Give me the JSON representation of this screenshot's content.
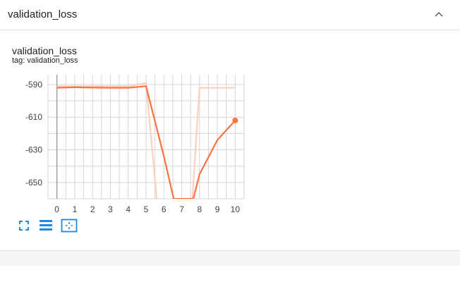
{
  "header": {
    "title": "validation_loss"
  },
  "icons": {
    "collapse": "chevron-up-icon",
    "fullscreen": "fullscreen-icon",
    "log_scale": "lines-icon",
    "fit_domain": "fit-to-data-icon"
  },
  "chart": {
    "title": "validation_loss",
    "tag": "tag: validation_loss"
  },
  "colors": {
    "series": "#ff7043",
    "series_faded": "#ffccbc",
    "grid": "#d6d6d6",
    "axis": "#9e9e9e",
    "toolbar_icon": "#1e88e5"
  },
  "chart_data": {
    "type": "line",
    "xlim": [
      -0.5,
      10.5
    ],
    "ylim": [
      -660,
      -584
    ],
    "x_ticks": [
      "0",
      "1",
      "2",
      "3",
      "4",
      "5",
      "6",
      "7",
      "8",
      "9",
      "10"
    ],
    "y_ticks": [
      "-590",
      "-610",
      "-630",
      "-650"
    ],
    "x_tick_values": [
      0,
      1,
      2,
      3,
      4,
      5,
      6,
      7,
      8,
      9,
      10
    ],
    "y_tick_values": [
      -590,
      -610,
      -630,
      -650
    ],
    "grid": true,
    "series": [
      {
        "style": "raw",
        "x": [
          0,
          1,
          2,
          3,
          4,
          5,
          5.6
        ],
        "y": [
          -591,
          -591,
          -591,
          -591,
          -591,
          -589,
          -660
        ]
      },
      {
        "style": "raw",
        "x": [
          7.6,
          8,
          9,
          10
        ],
        "y": [
          -660,
          -592,
          -592,
          -592
        ]
      },
      {
        "style": "smoothed",
        "x": [
          0,
          1,
          2,
          3,
          4,
          5,
          6,
          6.55,
          7.65,
          8,
          9,
          10
        ],
        "y": [
          -592,
          -591.7,
          -591.9,
          -592,
          -592,
          -591,
          -634,
          -660,
          -660,
          -645,
          -624,
          -612
        ]
      }
    ]
  }
}
